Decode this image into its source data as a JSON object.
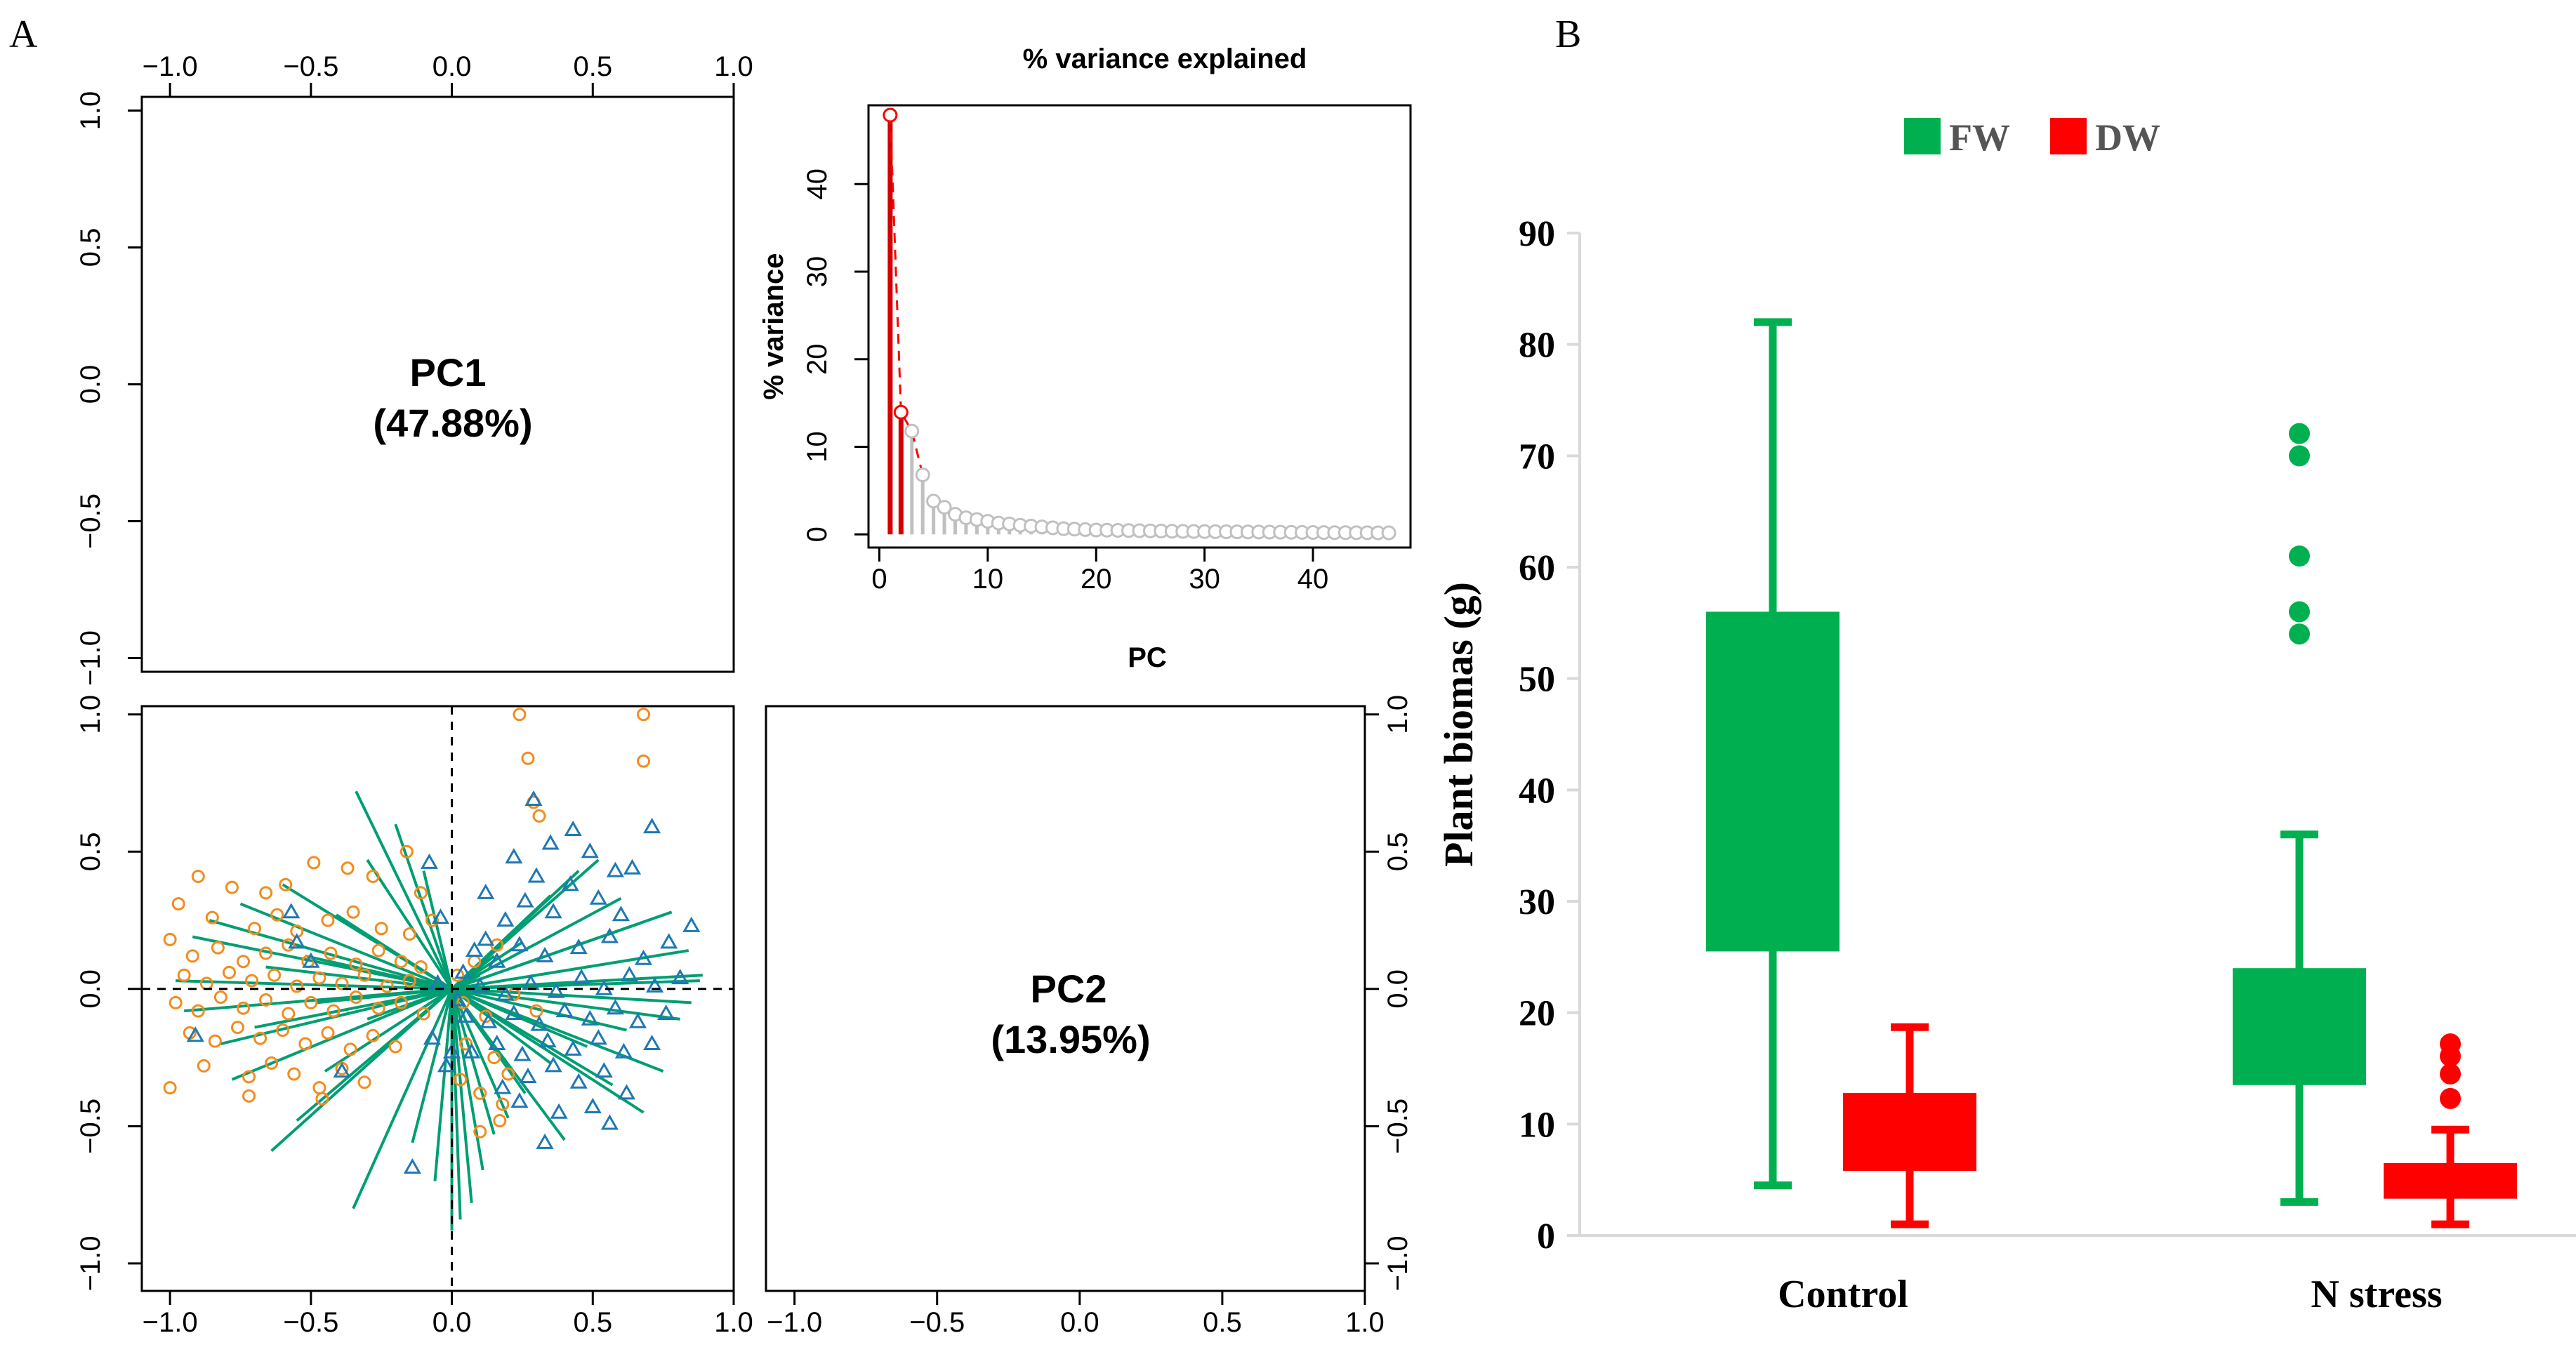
{
  "panel_labels": {
    "a": "A",
    "b": "B"
  },
  "colors": {
    "green": "#00b050",
    "red": "#ff0000",
    "orange": "#f28c1e",
    "blue": "#1f78b4",
    "teal": "#009e73",
    "grey": "#c0c0c0",
    "dark_red": "#d40000"
  },
  "chart_data": [
    {
      "id": "pc1-diagonal",
      "type": "text",
      "label": "PC1",
      "value": "(47.88%)",
      "x_ticks": [
        "−1.0",
        "−0.5",
        "0.0",
        "0.5",
        "1.0"
      ],
      "y_ticks": [
        "−1.0",
        "−0.5",
        "0.0",
        "0.5",
        "1.0"
      ],
      "xlim": [
        -1.1,
        1.0
      ],
      "ylim": [
        -1.05,
        1.05
      ]
    },
    {
      "id": "scree",
      "type": "line",
      "title": "% variance explained",
      "xlabel": "PC",
      "ylabel": "% variance",
      "x_ticks": [
        "0",
        "10",
        "20",
        "30",
        "40"
      ],
      "y_ticks": [
        "0",
        "10",
        "20",
        "30",
        "40"
      ],
      "xlim": [
        -1,
        49
      ],
      "ylim": [
        -1.5,
        49
      ],
      "highlighted": [
        1,
        2
      ],
      "x": [
        1,
        2,
        3,
        4,
        5,
        6,
        7,
        8,
        9,
        10,
        11,
        12,
        13,
        14,
        15,
        16,
        17,
        18,
        19,
        20,
        21,
        22,
        23,
        24,
        25,
        26,
        27,
        28,
        29,
        30,
        31,
        32,
        33,
        34,
        35,
        36,
        37,
        38,
        39,
        40,
        41,
        42,
        43,
        44,
        45,
        46,
        47
      ],
      "values": [
        47.88,
        13.95,
        11.8,
        6.8,
        3.8,
        3.1,
        2.3,
        1.9,
        1.7,
        1.5,
        1.3,
        1.2,
        1.05,
        0.95,
        0.85,
        0.75,
        0.65,
        0.6,
        0.55,
        0.5,
        0.48,
        0.46,
        0.44,
        0.42,
        0.4,
        0.38,
        0.36,
        0.34,
        0.33,
        0.32,
        0.31,
        0.3,
        0.29,
        0.28,
        0.27,
        0.26,
        0.25,
        0.24,
        0.23,
        0.22,
        0.21,
        0.2,
        0.2,
        0.19,
        0.19,
        0.18,
        0.18
      ]
    },
    {
      "id": "biplot",
      "type": "scatter",
      "x_ticks": [
        "−1.0",
        "−0.5",
        "0.0",
        "0.5",
        "1.0"
      ],
      "y_ticks": [
        "−1.0",
        "−0.5",
        "0.0",
        "0.5",
        "1.0"
      ],
      "xlim": [
        -1.1,
        1.0
      ],
      "ylim": [
        -1.1,
        1.03
      ],
      "series": [
        {
          "marker": "circle",
          "points": [
            [
              0.24,
              1.0
            ],
            [
              0.68,
              1.0
            ],
            [
              0.27,
              0.84
            ],
            [
              0.68,
              0.83
            ],
            [
              0.29,
              0.68
            ],
            [
              0.31,
              0.63
            ],
            [
              -0.9,
              0.41
            ],
            [
              -0.78,
              0.37
            ],
            [
              -0.66,
              0.35
            ],
            [
              -0.59,
              0.38
            ],
            [
              -0.49,
              0.46
            ],
            [
              -0.37,
              0.44
            ],
            [
              -0.28,
              0.41
            ],
            [
              -0.16,
              0.5
            ],
            [
              -0.11,
              0.35
            ],
            [
              -0.07,
              0.25
            ],
            [
              -0.97,
              0.31
            ],
            [
              -0.85,
              0.26
            ],
            [
              -0.7,
              0.22
            ],
            [
              -0.62,
              0.27
            ],
            [
              -0.55,
              0.21
            ],
            [
              -0.44,
              0.25
            ],
            [
              -0.35,
              0.28
            ],
            [
              -0.25,
              0.22
            ],
            [
              -0.15,
              0.2
            ],
            [
              -1.0,
              0.18
            ],
            [
              -0.92,
              0.12
            ],
            [
              -0.83,
              0.15
            ],
            [
              -0.74,
              0.1
            ],
            [
              -0.66,
              0.13
            ],
            [
              -0.58,
              0.16
            ],
            [
              -0.51,
              0.1
            ],
            [
              -0.43,
              0.13
            ],
            [
              -0.34,
              0.09
            ],
            [
              -0.26,
              0.14
            ],
            [
              -0.18,
              0.1
            ],
            [
              -0.11,
              0.08
            ],
            [
              -0.95,
              0.05
            ],
            [
              -0.87,
              0.02
            ],
            [
              -0.79,
              0.06
            ],
            [
              -0.71,
              0.03
            ],
            [
              -0.63,
              0.05
            ],
            [
              -0.55,
              0.01
            ],
            [
              -0.47,
              0.04
            ],
            [
              -0.39,
              0.02
            ],
            [
              -0.31,
              0.05
            ],
            [
              -0.23,
              0.01
            ],
            [
              -0.15,
              0.03
            ],
            [
              -0.98,
              -0.05
            ],
            [
              -0.9,
              -0.08
            ],
            [
              -0.82,
              -0.03
            ],
            [
              -0.74,
              -0.07
            ],
            [
              -0.66,
              -0.04
            ],
            [
              -0.58,
              -0.09
            ],
            [
              -0.5,
              -0.05
            ],
            [
              -0.42,
              -0.08
            ],
            [
              -0.34,
              -0.03
            ],
            [
              -0.26,
              -0.07
            ],
            [
              -0.18,
              -0.05
            ],
            [
              -0.1,
              -0.09
            ],
            [
              -0.93,
              -0.16
            ],
            [
              -0.84,
              -0.19
            ],
            [
              -0.76,
              -0.14
            ],
            [
              -0.68,
              -0.18
            ],
            [
              -0.6,
              -0.15
            ],
            [
              -0.52,
              -0.2
            ],
            [
              -0.44,
              -0.16
            ],
            [
              -0.36,
              -0.22
            ],
            [
              -0.28,
              -0.17
            ],
            [
              -0.2,
              -0.21
            ],
            [
              -0.88,
              -0.28
            ],
            [
              -0.72,
              -0.32
            ],
            [
              -0.64,
              -0.27
            ],
            [
              -0.56,
              -0.31
            ],
            [
              -0.47,
              -0.36
            ],
            [
              -0.39,
              -0.29
            ],
            [
              -0.31,
              -0.34
            ],
            [
              -1.0,
              -0.36
            ],
            [
              -0.72,
              -0.39
            ],
            [
              -0.46,
              -0.4
            ],
            [
              0.18,
              -0.42
            ],
            [
              0.1,
              -0.38
            ],
            [
              0.03,
              -0.33
            ],
            [
              0.05,
              -0.2
            ],
            [
              0.15,
              -0.25
            ],
            [
              0.2,
              -0.31
            ],
            [
              0.12,
              -0.1
            ],
            [
              0.04,
              -0.05
            ],
            [
              0.22,
              -0.02
            ],
            [
              0.3,
              -0.08
            ],
            [
              0.02,
              0.05
            ],
            [
              0.08,
              0.1
            ],
            [
              0.16,
              0.16
            ],
            [
              0.1,
              -0.52
            ],
            [
              0.17,
              -0.48
            ]
          ]
        },
        {
          "marker": "triangle",
          "points": [
            [
              0.71,
              0.59
            ],
            [
              0.29,
              0.69
            ],
            [
              0.43,
              0.58
            ],
            [
              0.35,
              0.53
            ],
            [
              0.49,
              0.5
            ],
            [
              0.64,
              0.44
            ],
            [
              0.3,
              0.41
            ],
            [
              0.42,
              0.38
            ],
            [
              0.52,
              0.33
            ],
            [
              0.6,
              0.27
            ],
            [
              0.36,
              0.28
            ],
            [
              0.26,
              0.32
            ],
            [
              0.19,
              0.25
            ],
            [
              0.12,
              0.18
            ],
            [
              0.85,
              0.23
            ],
            [
              0.77,
              0.17
            ],
            [
              0.68,
              0.11
            ],
            [
              0.56,
              0.19
            ],
            [
              0.45,
              0.15
            ],
            [
              0.33,
              0.12
            ],
            [
              0.24,
              0.16
            ],
            [
              0.16,
              0.1
            ],
            [
              0.08,
              0.14
            ],
            [
              0.04,
              0.06
            ],
            [
              0.81,
              0.04
            ],
            [
              0.72,
              0.01
            ],
            [
              0.63,
              0.05
            ],
            [
              0.54,
              0.0
            ],
            [
              0.46,
              0.04
            ],
            [
              0.37,
              -0.01
            ],
            [
              0.28,
              0.02
            ],
            [
              0.19,
              -0.02
            ],
            [
              0.1,
              0.01
            ],
            [
              0.02,
              -0.04
            ],
            [
              0.76,
              -0.09
            ],
            [
              0.66,
              -0.12
            ],
            [
              0.58,
              -0.07
            ],
            [
              0.49,
              -0.11
            ],
            [
              0.4,
              -0.08
            ],
            [
              0.31,
              -0.13
            ],
            [
              0.22,
              -0.09
            ],
            [
              0.13,
              -0.12
            ],
            [
              0.05,
              -0.1
            ],
            [
              0.71,
              -0.2
            ],
            [
              0.61,
              -0.23
            ],
            [
              0.52,
              -0.18
            ],
            [
              0.43,
              -0.22
            ],
            [
              0.34,
              -0.19
            ],
            [
              0.25,
              -0.24
            ],
            [
              0.16,
              -0.2
            ],
            [
              0.07,
              -0.23
            ],
            [
              0.54,
              -0.3
            ],
            [
              0.45,
              -0.34
            ],
            [
              0.36,
              -0.28
            ],
            [
              0.27,
              -0.32
            ],
            [
              0.18,
              -0.36
            ],
            [
              0.62,
              -0.38
            ],
            [
              0.5,
              -0.43
            ],
            [
              0.38,
              -0.45
            ],
            [
              0.24,
              -0.41
            ],
            [
              0.56,
              -0.49
            ],
            [
              0.33,
              -0.56
            ],
            [
              -0.14,
              -0.65
            ],
            [
              -0.39,
              -0.3
            ],
            [
              -0.07,
              -0.18
            ],
            [
              -0.02,
              -0.28
            ],
            [
              0.0,
              -0.23
            ],
            [
              -0.05,
              0.02
            ],
            [
              -0.91,
              -0.17
            ],
            [
              -0.5,
              0.1
            ],
            [
              -0.55,
              0.17
            ],
            [
              -0.57,
              0.28
            ],
            [
              -0.08,
              0.46
            ],
            [
              -0.04,
              0.26
            ],
            [
              0.12,
              0.35
            ],
            [
              0.22,
              0.48
            ],
            [
              0.58,
              0.43
            ]
          ]
        }
      ],
      "loadings": [
        [
          -0.92,
          0.19
        ],
        [
          -0.98,
          0.03
        ],
        [
          -0.95,
          -0.08
        ],
        [
          -0.86,
          0.25
        ],
        [
          -0.82,
          -0.2
        ],
        [
          -0.75,
          0.31
        ],
        [
          -0.7,
          -0.14
        ],
        [
          -0.64,
          -0.59
        ],
        [
          -0.6,
          0.38
        ],
        [
          -0.55,
          -0.48
        ],
        [
          -0.52,
          0.12
        ],
        [
          -0.45,
          -0.3
        ],
        [
          -0.41,
          0.27
        ],
        [
          -0.35,
          -0.8
        ],
        [
          -0.3,
          0.47
        ],
        [
          -0.34,
          0.72
        ],
        [
          -0.2,
          0.6
        ],
        [
          -0.14,
          -0.56
        ],
        [
          -0.1,
          0.43
        ],
        [
          -0.06,
          -0.7
        ],
        [
          0.0,
          -0.88
        ],
        [
          0.03,
          -0.84
        ],
        [
          0.07,
          -0.78
        ],
        [
          0.11,
          -0.66
        ],
        [
          0.15,
          -0.53
        ],
        [
          0.2,
          -0.47
        ],
        [
          0.26,
          -0.38
        ],
        [
          0.35,
          -0.27
        ],
        [
          0.4,
          -0.55
        ],
        [
          0.48,
          -0.21
        ],
        [
          0.57,
          -0.35
        ],
        [
          0.62,
          -0.15
        ],
        [
          0.68,
          -0.45
        ],
        [
          0.75,
          -0.3
        ],
        [
          0.81,
          -0.11
        ],
        [
          0.85,
          -0.05
        ],
        [
          0.88,
          0.03
        ],
        [
          0.89,
          0.05
        ],
        [
          0.84,
          0.14
        ],
        [
          0.78,
          0.28
        ],
        [
          0.67,
          0.24
        ],
        [
          0.6,
          0.33
        ],
        [
          0.52,
          0.47
        ],
        [
          0.45,
          0.43
        ],
        [
          0.35,
          0.34
        ],
        [
          0.25,
          0.17
        ],
        [
          0.15,
          0.12
        ],
        [
          0.1,
          0.05
        ],
        [
          -0.78,
          -0.33
        ],
        [
          -0.66,
          0.08
        ],
        [
          -0.48,
          -0.05
        ],
        [
          -0.3,
          -0.11
        ]
      ]
    },
    {
      "id": "pc2-diagonal",
      "type": "text",
      "label": "PC2",
      "value": "(13.95%)",
      "x_ticks": [
        "−1.0",
        "−0.5",
        "0.0",
        "0.5",
        "1.0"
      ],
      "y_ticks": [
        "−1.0",
        "−0.5",
        "0.0",
        "0.5",
        "1.0"
      ],
      "xlim": [
        -1.1,
        1.0
      ],
      "ylim": [
        -1.1,
        1.03
      ]
    },
    {
      "id": "biomass",
      "type": "box",
      "ylabel": "Plant biomas (g)",
      "ylim": [
        0,
        90
      ],
      "y_ticks": [
        "0",
        "10",
        "20",
        "30",
        "40",
        "50",
        "60",
        "70",
        "80",
        "90"
      ],
      "categories": [
        "Control",
        "N stress"
      ],
      "legend": [
        {
          "name": "FW",
          "color": "#00b050"
        },
        {
          "name": "DW",
          "color": "#ff0000"
        }
      ],
      "series": [
        {
          "name": "FW",
          "boxes": [
            {
              "whisker_low": 4.5,
              "q1": 25.5,
              "q3": 56,
              "whisker_high": 82,
              "outliers": []
            },
            {
              "whisker_low": 3,
              "q1": 13.5,
              "q3": 24,
              "whisker_high": 36,
              "outliers": [
                54,
                56,
                61,
                70,
                72
              ]
            }
          ]
        },
        {
          "name": "DW",
          "boxes": [
            {
              "whisker_low": 1,
              "q1": 5.8,
              "q3": 12.8,
              "whisker_high": 18.7,
              "outliers": []
            },
            {
              "whisker_low": 1,
              "q1": 3.3,
              "q3": 6.5,
              "whisker_high": 9.5,
              "outliers": [
                12.3,
                14.5,
                16.1,
                17.2
              ]
            }
          ]
        }
      ]
    }
  ]
}
